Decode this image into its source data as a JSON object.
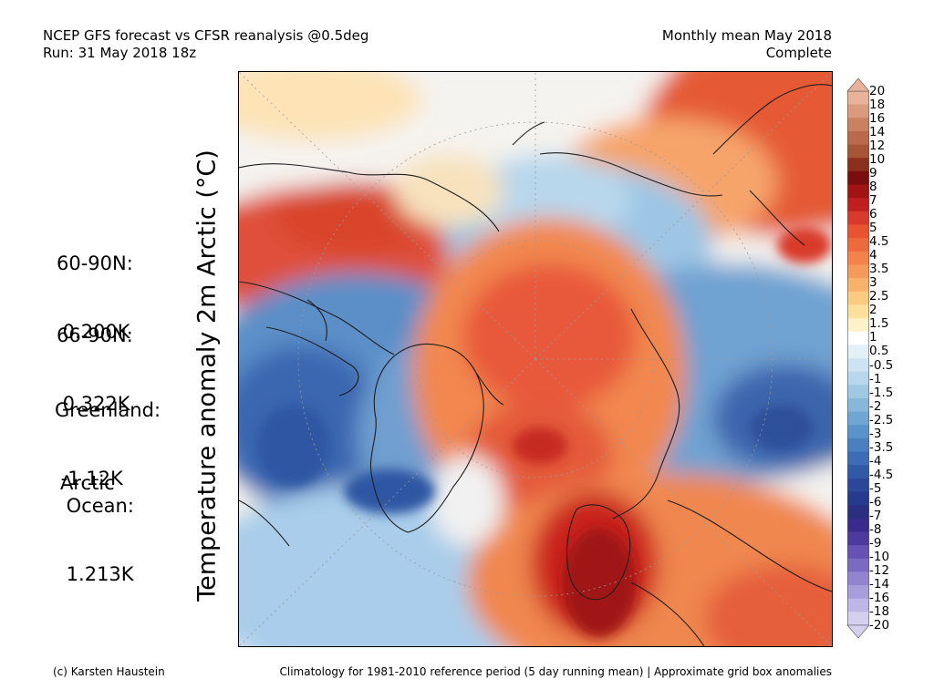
{
  "header": {
    "line1_left": "NCEP GFS forecast vs CFSR reanalysis @0.5deg",
    "line2_left": "Run: 31 May 2018 18z",
    "line1_right": "Monthly mean May 2018",
    "line2_right": "Complete"
  },
  "stats": [
    {
      "label": "60-90N:",
      "value": " 0.200K"
    },
    {
      "label": "66-90N:",
      "value": " 0.322K"
    },
    {
      "label": "Greenland:",
      "value": " -1.12K"
    },
    {
      "label": "Arctic\n Ocean:",
      "value": " 1.213K"
    }
  ],
  "y_axis_label": "Temperature anomaly 2m Arctic (°C)",
  "colorbar": {
    "labels": [
      "20",
      "18",
      "16",
      "14",
      "12",
      "10",
      "9",
      "8",
      "7",
      "6",
      "5",
      "4.5",
      "4",
      "3.5",
      "3",
      "2.5",
      "2",
      "1.5",
      "1",
      "0.5",
      "-0.5",
      "-1",
      "-1.5",
      "-2",
      "-2.5",
      "-3",
      "-3.5",
      "-4",
      "-4.5",
      "-5",
      "-6",
      "-7",
      "-8",
      "-9",
      "-10",
      "-12",
      "-14",
      "-16",
      "-18",
      "-20"
    ],
    "colors": [
      "#e8b39a",
      "#d99a7e",
      "#c98160",
      "#b86a4a",
      "#a65535",
      "#8c2f1c",
      "#7a0d0d",
      "#a01414",
      "#c01f1f",
      "#d93a2b",
      "#e9532f",
      "#ee6a3c",
      "#f3824b",
      "#f59a5a",
      "#f8b36b",
      "#fbcb82",
      "#fde09c",
      "#fff1c8",
      "#ffffff",
      "#e4f0f8",
      "#cfe4f2",
      "#b8d7ec",
      "#9fc8e3",
      "#87b8dc",
      "#6fa6d3",
      "#5a93c9",
      "#4a80bf",
      "#3c6db4",
      "#315aa6",
      "#2a4897",
      "#253a8a",
      "#2b2f80",
      "#3a2a8c",
      "#4d3a9e",
      "#6552b2",
      "#7b6ac2",
      "#9284d0",
      "#a89edc",
      "#bdb6e6",
      "#d6d0f0"
    ]
  },
  "map": {
    "highlight_colors": {
      "warm": "#e0452e",
      "cold": "#3b6fb6",
      "land_line": "#222222"
    }
  },
  "footer": {
    "left": "(c) Karsten Haustein",
    "right": "Climatology for 1981-2010 reference period (5 day running mean) | Approximate grid box anomalies"
  }
}
